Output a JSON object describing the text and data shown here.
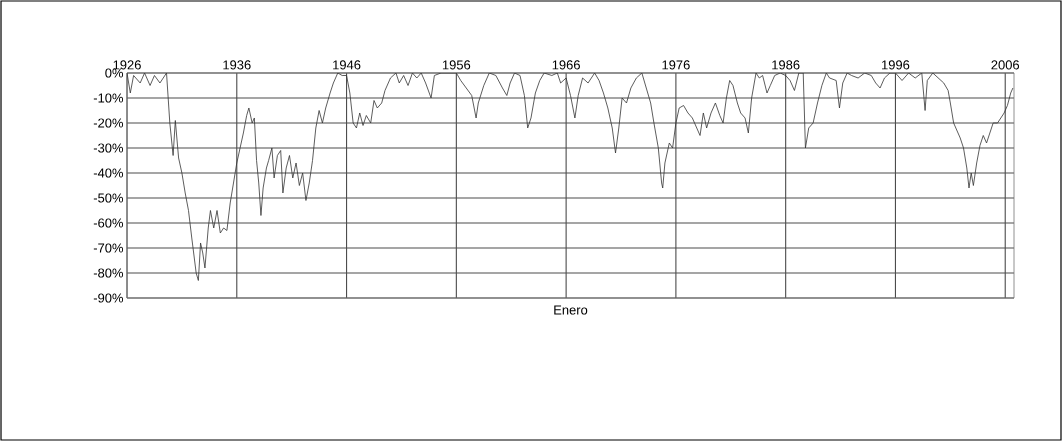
{
  "chart_data": {
    "type": "line",
    "xlabel": "Enero",
    "x": [
      1926.0,
      1926.3,
      1926.6,
      1927.2,
      1927.6,
      1928.1,
      1928.5,
      1929.0,
      1929.6,
      1929.9,
      1930.2,
      1930.4,
      1930.7,
      1931.0,
      1931.3,
      1931.6,
      1931.9,
      1932.3,
      1932.5,
      1932.7,
      1932.9,
      1933.1,
      1933.4,
      1933.6,
      1933.9,
      1934.2,
      1934.5,
      1934.8,
      1935.1,
      1935.4,
      1935.7,
      1936.0,
      1936.3,
      1936.6,
      1936.9,
      1937.1,
      1937.4,
      1937.6,
      1937.8,
      1938.0,
      1938.2,
      1938.4,
      1938.7,
      1938.9,
      1939.2,
      1939.4,
      1939.7,
      1940.0,
      1940.2,
      1940.5,
      1940.8,
      1941.1,
      1941.4,
      1941.7,
      1942.0,
      1942.3,
      1942.6,
      1942.9,
      1943.2,
      1943.5,
      1943.8,
      1944.1,
      1944.5,
      1944.8,
      1945.2,
      1945.6,
      1946.0,
      1946.3,
      1946.6,
      1946.9,
      1947.2,
      1947.5,
      1947.8,
      1948.2,
      1948.5,
      1948.8,
      1949.2,
      1949.5,
      1950.0,
      1950.5,
      1950.8,
      1951.2,
      1951.6,
      1952.0,
      1952.4,
      1952.8,
      1953.2,
      1953.7,
      1954.0,
      1954.6,
      1955.2,
      1955.7,
      1956.0,
      1956.4,
      1956.9,
      1957.4,
      1957.8,
      1958.0,
      1958.5,
      1959.0,
      1959.6,
      1960.2,
      1960.6,
      1960.9,
      1961.3,
      1961.8,
      1962.2,
      1962.5,
      1962.8,
      1963.2,
      1963.6,
      1964.0,
      1964.7,
      1965.2,
      1965.5,
      1966.0,
      1966.4,
      1966.8,
      1967.1,
      1967.5,
      1968.0,
      1968.6,
      1969.0,
      1969.4,
      1969.8,
      1970.2,
      1970.5,
      1970.8,
      1971.1,
      1971.5,
      1971.9,
      1972.4,
      1972.9,
      1973.3,
      1973.7,
      1974.0,
      1974.4,
      1974.7,
      1974.8,
      1975.0,
      1975.4,
      1975.7,
      1976.0,
      1976.3,
      1976.7,
      1977.1,
      1977.5,
      1977.9,
      1978.2,
      1978.5,
      1978.8,
      1979.2,
      1979.6,
      1980.0,
      1980.3,
      1980.6,
      1980.9,
      1981.2,
      1981.6,
      1981.9,
      1982.3,
      1982.6,
      1982.9,
      1983.3,
      1983.6,
      1983.9,
      1984.3,
      1984.6,
      1985.0,
      1985.5,
      1986.0,
      1986.4,
      1986.8,
      1987.2,
      1987.6,
      1987.8,
      1988.1,
      1988.5,
      1988.9,
      1989.3,
      1989.7,
      1990.0,
      1990.6,
      1990.9,
      1991.2,
      1991.6,
      1992.0,
      1992.6,
      1993.2,
      1993.8,
      1994.2,
      1994.6,
      1995.0,
      1995.5,
      1996.0,
      1996.6,
      1997.2,
      1997.8,
      1998.4,
      1998.7,
      1998.9,
      1999.4,
      1999.9,
      2000.4,
      2000.8,
      2001.0,
      2001.3,
      2001.7,
      2001.9,
      2002.2,
      2002.5,
      2002.7,
      2002.9,
      2003.1,
      2003.4,
      2003.7,
      2004.0,
      2004.3,
      2004.6,
      2004.9,
      2005.3,
      2005.6,
      2005.9,
      2006.2,
      2006.5,
      2006.7
    ],
    "values": [
      0,
      -8,
      -1,
      -4,
      0,
      -5,
      -1,
      -4,
      0,
      -20,
      -33,
      -19,
      -34,
      -40,
      -48,
      -55,
      -66,
      -80,
      -83,
      -68,
      -72,
      -78,
      -62,
      -55,
      -62,
      -55,
      -64,
      -62,
      -63,
      -52,
      -44,
      -36,
      -30,
      -24,
      -17,
      -14,
      -20,
      -18,
      -35,
      -44,
      -57,
      -46,
      -38,
      -35,
      -30,
      -42,
      -33,
      -31,
      -48,
      -38,
      -33,
      -42,
      -36,
      -45,
      -40,
      -51,
      -44,
      -35,
      -22,
      -15,
      -20,
      -14,
      -8,
      -4,
      0,
      -1,
      -1,
      -8,
      -20,
      -22,
      -16,
      -21,
      -17,
      -20,
      -11,
      -14,
      -12,
      -7,
      -2,
      0,
      -4,
      -1,
      -5,
      0,
      -2,
      0,
      -4,
      -10,
      -1,
      0,
      0,
      0,
      0,
      -3,
      -6,
      -9,
      -18,
      -12,
      -5,
      0,
      -1,
      -6,
      -9,
      -4,
      0,
      -1,
      -9,
      -22,
      -18,
      -8,
      -3,
      0,
      -1,
      0,
      -4,
      -2,
      -9,
      -18,
      -9,
      -2,
      -4,
      0,
      -3,
      -8,
      -14,
      -22,
      -32,
      -22,
      -10,
      -12,
      -6,
      -2,
      0,
      -6,
      -12,
      -20,
      -30,
      -44,
      -46,
      -36,
      -28,
      -30,
      -20,
      -14,
      -13,
      -16,
      -18,
      -22,
      -25,
      -16,
      -22,
      -16,
      -12,
      -17,
      -20,
      -10,
      -3,
      -5,
      -12,
      -16,
      -18,
      -24,
      -10,
      0,
      -2,
      -1,
      -8,
      -5,
      -1,
      0,
      -1,
      -3,
      -7,
      0,
      0,
      -30,
      -22,
      -20,
      -12,
      -5,
      0,
      -2,
      -3,
      -14,
      -4,
      0,
      -1,
      -2,
      0,
      -1,
      -4,
      -6,
      -2,
      0,
      0,
      -3,
      0,
      -2,
      0,
      -15,
      -3,
      0,
      -2,
      -4,
      -7,
      -12,
      -20,
      -24,
      -26,
      -30,
      -38,
      -46,
      -40,
      -45,
      -36,
      -29,
      -25,
      -28,
      -24,
      -20,
      -20,
      -18,
      -16,
      -13,
      -8,
      -6
    ],
    "color": "#333333",
    "xlim": [
      1926,
      2006.8
    ],
    "ylim": [
      -90,
      0
    ],
    "xticks": [
      1926,
      1936,
      1946,
      1956,
      1966,
      1976,
      1986,
      1996,
      2006
    ],
    "yticks": [
      {
        "value": 0,
        "label": "0%"
      },
      {
        "value": -10,
        "label": "-10%"
      },
      {
        "value": -20,
        "label": "-20%"
      },
      {
        "value": -30,
        "label": "-30%"
      },
      {
        "value": -40,
        "label": "-40%"
      },
      {
        "value": -50,
        "label": "-50%"
      },
      {
        "value": -60,
        "label": "-60%"
      },
      {
        "value": -70,
        "label": "-70%"
      },
      {
        "value": -80,
        "label": "-80%"
      },
      {
        "value": -90,
        "label": "-90%"
      }
    ],
    "grid": true,
    "marker": "none",
    "line_style": "solid"
  }
}
